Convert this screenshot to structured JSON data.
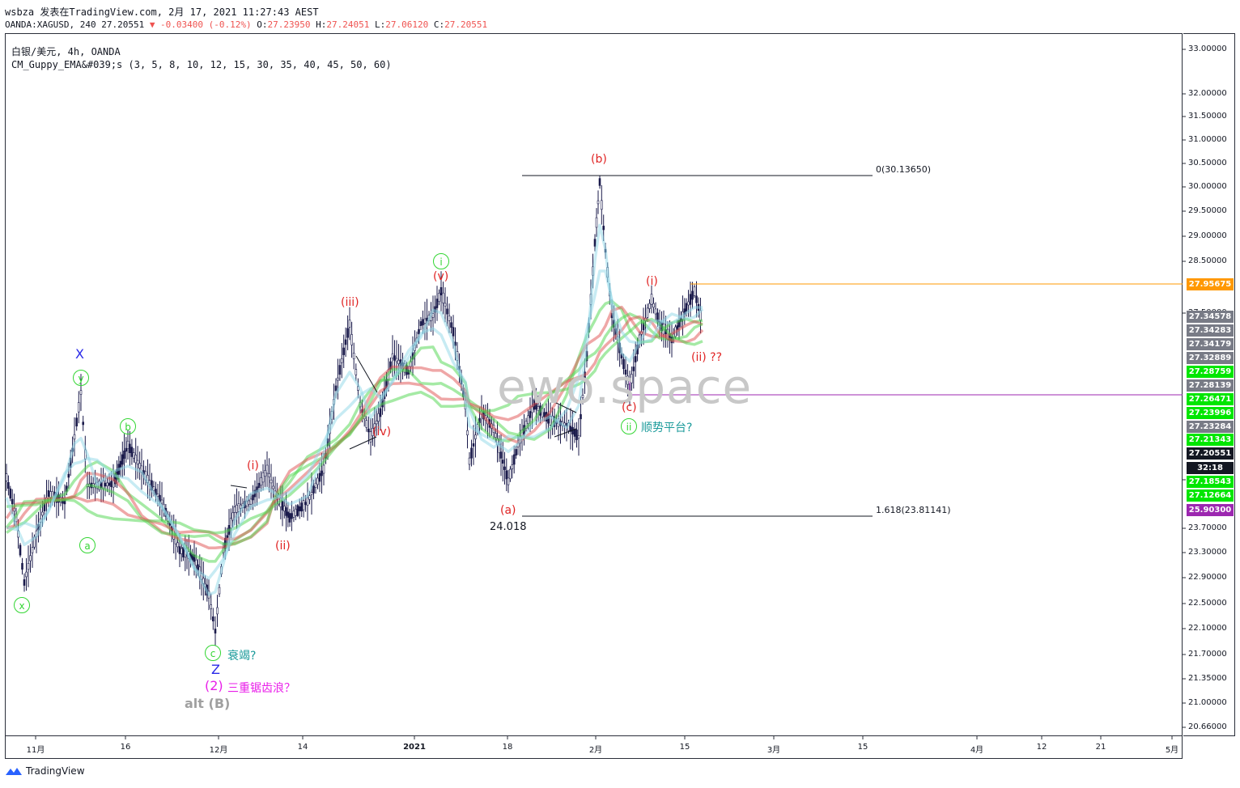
{
  "header": {
    "line1": "wsbza 发表在TradingView.com, 2月 17, 2021 11:27:43 AEST",
    "symbol": "OANDA:XAGUSD, 240 27.20551",
    "change": "▼ -0.03400 (-0.12%)",
    "o_label": "O:",
    "o": "27.23950",
    "h_label": "H:",
    "h": "27.24051",
    "l_label": "L:",
    "l": "27.06120",
    "c_label": "C:",
    "c": "27.20551"
  },
  "legend": {
    "line1": "白银/美元, 4h, OANDA",
    "line2": "CM_Guppy_EMA&#039;s (3, 5, 8, 10, 12, 15, 30, 35, 40, 45, 50, 60)"
  },
  "watermark": "ewo.space",
  "footer": {
    "logo_text": "TradingView"
  },
  "colors": {
    "up": "#ef5350",
    "green_tag": "#00e600",
    "gray_tag": "#787b86",
    "orange": "#ff9800",
    "purple": "#9c27b0",
    "navy": "#131722"
  },
  "chart_data": {
    "type": "candlestick",
    "symbol": "OANDA:XAGUSD",
    "timeframe": "4h",
    "ylim": [
      20.4,
      33.2
    ],
    "price_ticks": [
      "33.00000",
      "32.00000",
      "31.50000",
      "31.00000",
      "30.50000",
      "30.00000",
      "29.50000",
      "29.00000",
      "28.50000",
      "27.50000",
      "24.10000",
      "23.70000",
      "23.30000",
      "22.90000",
      "22.50000",
      "22.10000",
      "21.70000",
      "21.35000",
      "21.00000",
      "20.66000"
    ],
    "time_ticks": [
      "11月",
      "16",
      "12月",
      "14",
      "2021",
      "18",
      "2月",
      "15",
      "3月",
      "15",
      "4月",
      "12",
      "21",
      "5月"
    ],
    "price_tags": [
      {
        "value": "27.95675",
        "color": "#ff9800"
      },
      {
        "value": "27.34578",
        "color": "#787b86"
      },
      {
        "value": "27.34283",
        "color": "#787b86"
      },
      {
        "value": "27.34179",
        "color": "#787b86"
      },
      {
        "value": "27.32889",
        "color": "#787b86"
      },
      {
        "value": "27.28759",
        "color": "#00e600"
      },
      {
        "value": "27.28139",
        "color": "#787b86"
      },
      {
        "value": "27.26471",
        "color": "#00e600"
      },
      {
        "value": "27.23996",
        "color": "#00e600"
      },
      {
        "value": "27.23284",
        "color": "#787b86"
      },
      {
        "value": "27.21343",
        "color": "#00e600"
      },
      {
        "value": "27.20551",
        "color": "#131722"
      },
      {
        "value": "32:18",
        "color": "#131722"
      },
      {
        "value": "27.18543",
        "color": "#00e600"
      },
      {
        "value": "27.12664",
        "color": "#00e600"
      },
      {
        "value": "25.90300",
        "color": "#9c27b0"
      }
    ],
    "fib_levels": [
      {
        "label": "0(30.13650)",
        "value": 30.1365
      },
      {
        "label": "1.618(23.81141)",
        "value": 23.81141
      }
    ],
    "horizontal_lines": [
      {
        "value": 27.95675,
        "color": "#ff9800"
      },
      {
        "value": 25.903,
        "color": "#9c27b0"
      }
    ],
    "price_label": "24.018",
    "wave_labels": {
      "X": "X",
      "y": "y",
      "b": "b",
      "a": "a",
      "x": "x",
      "c": "c",
      "Z": "Z",
      "two": "(2)",
      "altB": "alt (B)",
      "c_note": "衰竭?",
      "two_note": "三重锯齿浪？",
      "i_red_1": "(i)",
      "ii_red_1": "(ii)",
      "iii_red": "(iii)",
      "iv_red": "(iv)",
      "v_red": "(v)",
      "i_green": "i",
      "a_red": "(a)",
      "b_red": "(b)",
      "c_red": "(c)",
      "i_red_2": "(i)",
      "ii_red_2": "(ii) ??",
      "ii_green": "ii",
      "ii_note": "顺势平台?"
    },
    "key_prices": [
      {
        "label": "x",
        "value": 22.9
      },
      {
        "label": "y",
        "value": 26.7
      },
      {
        "label": "a",
        "value": 24.2
      },
      {
        "label": "b",
        "value": 25.6
      },
      {
        "label": "c",
        "value": 21.9
      },
      {
        "label": "(iii)",
        "value": 26.4
      },
      {
        "label": "(v)/i",
        "value": 27.6
      },
      {
        "label": "(a)",
        "value": 24.018
      },
      {
        "label": "(b)",
        "value": 30.1365
      },
      {
        "label": "(i)",
        "value": 27.95675
      },
      {
        "label": "(c)",
        "value": 25.9
      }
    ]
  }
}
